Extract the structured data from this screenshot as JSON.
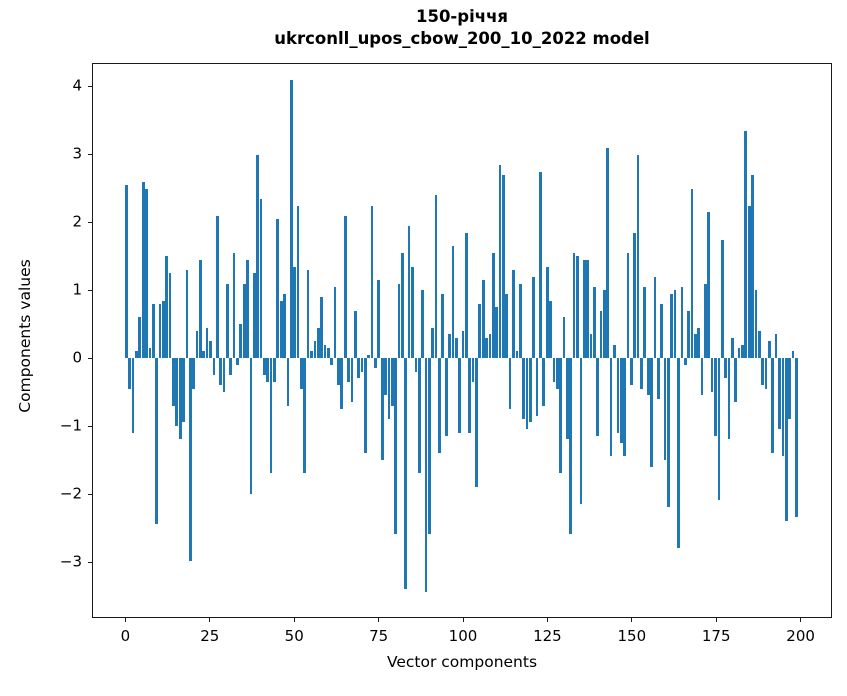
{
  "chart_data": {
    "type": "bar",
    "title_line1": "150-річчя",
    "title_line2": "ukrconll_upos_cbow_200_10_2022 model",
    "xlabel": "Vector components",
    "ylabel": "Components values",
    "bar_color": "#1f77b4",
    "background_color": "#ffffff",
    "frame_color": "#1a1a1a",
    "grid": false,
    "legend": false,
    "xlim": [
      -9.9,
      209.3
    ],
    "ylim": [
      -3.82,
      4.34
    ],
    "bar_width_units": 0.8,
    "x_ticks": {
      "values": [
        0,
        25,
        50,
        75,
        100,
        125,
        150,
        175,
        200
      ],
      "labels": [
        "0",
        "25",
        "50",
        "75",
        "100",
        "125",
        "150",
        "175",
        "200"
      ]
    },
    "y_ticks": {
      "values": [
        4,
        3,
        2,
        1,
        0,
        -1,
        -2,
        -3
      ],
      "labels": [
        "4",
        "3",
        "2",
        "1",
        "0",
        "−1",
        "−2",
        "−3"
      ]
    },
    "x_start_index": 0,
    "values": [
      2.55,
      -0.45,
      -1.1,
      0.1,
      0.6,
      2.6,
      2.5,
      0.15,
      0.8,
      -2.45,
      0.8,
      0.85,
      1.5,
      1.25,
      -0.7,
      -1.0,
      -1.2,
      -0.95,
      1.3,
      -3.0,
      -0.45,
      0.4,
      1.45,
      0.1,
      0.45,
      0.25,
      -0.25,
      2.1,
      -0.4,
      -0.5,
      1.1,
      -0.25,
      1.55,
      -0.1,
      0.5,
      1.1,
      1.45,
      -2.0,
      1.25,
      3.0,
      2.35,
      -0.25,
      -0.35,
      -1.7,
      -0.35,
      2.05,
      0.85,
      0.95,
      -0.7,
      4.1,
      1.35,
      2.25,
      -0.45,
      -1.7,
      1.3,
      0.1,
      0.25,
      0.45,
      0.9,
      0.2,
      0.15,
      -0.1,
      1.05,
      -0.4,
      -0.75,
      2.1,
      -0.35,
      -0.65,
      0.7,
      -0.3,
      -0.2,
      -1.4,
      0.05,
      2.25,
      -0.15,
      1.15,
      -1.5,
      -0.55,
      -0.9,
      -0.7,
      -2.6,
      1.1,
      1.55,
      -3.4,
      1.95,
      1.35,
      -0.2,
      -1.7,
      1.0,
      -3.45,
      -2.6,
      0.45,
      2.4,
      -1.4,
      0.95,
      -1.15,
      0.35,
      1.65,
      0.3,
      -1.1,
      0.4,
      1.85,
      -1.1,
      -0.35,
      -1.9,
      0.8,
      1.15,
      0.3,
      0.35,
      1.55,
      0.75,
      2.85,
      2.7,
      0.95,
      -0.75,
      1.3,
      0.1,
      1.1,
      -0.9,
      -1.05,
      -0.95,
      1.2,
      -0.85,
      2.75,
      -0.7,
      1.35,
      0.85,
      -0.35,
      -0.45,
      -1.7,
      0.6,
      -1.2,
      -2.6,
      1.55,
      1.5,
      -2.15,
      1.45,
      1.45,
      0.35,
      1.05,
      -1.15,
      0.7,
      1.0,
      3.1,
      -1.45,
      0.2,
      -1.1,
      -1.25,
      -1.45,
      1.55,
      -0.4,
      1.85,
      3.0,
      -0.45,
      1.05,
      -0.55,
      -1.6,
      1.2,
      -0.6,
      0.8,
      -1.5,
      -2.2,
      0.95,
      1.0,
      -2.8,
      1.05,
      -0.1,
      0.7,
      2.5,
      0.35,
      0.45,
      -0.55,
      1.1,
      2.15,
      -0.5,
      -1.15,
      -2.1,
      1.75,
      -0.3,
      -1.2,
      0.3,
      -0.65,
      0.15,
      0.2,
      3.35,
      2.25,
      2.7,
      1.0,
      0.4,
      -0.4,
      -0.45,
      0.25,
      -1.4,
      0.35,
      -1.05,
      -1.45,
      -2.4,
      -0.9,
      0.1,
      -2.35
    ]
  }
}
